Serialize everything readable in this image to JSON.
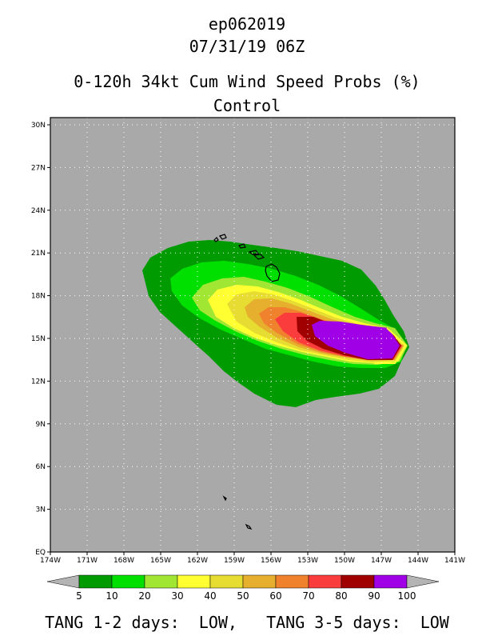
{
  "header": {
    "storm_id": "ep062019",
    "datetime": "07/31/19 06Z",
    "product": "0-120h 34kt Cum Wind Speed Probs (%)",
    "run": "Control"
  },
  "map": {
    "background_color": "#a9a9a9",
    "lat_labels": [
      "30N",
      "27N",
      "24N",
      "21N",
      "18N",
      "15N",
      "12N",
      "9N",
      "6N",
      "3N",
      "EQ"
    ],
    "lon_labels": [
      "174W",
      "171W",
      "168W",
      "165W",
      "162W",
      "159W",
      "156W",
      "153W",
      "150W",
      "147W",
      "144W",
      "141W"
    ]
  },
  "legend": {
    "labels": [
      "5",
      "10",
      "20",
      "30",
      "40",
      "50",
      "60",
      "70",
      "80",
      "90",
      "100"
    ],
    "colors": [
      "#009b00",
      "#00e000",
      "#a0e632",
      "#ffff32",
      "#e6dc32",
      "#e6af2d",
      "#f0822d",
      "#fa3c3c",
      "#a00000",
      "#a000e6"
    ],
    "low_color": "#b4b4b4",
    "high_color": "#b4b4b4"
  },
  "footer": {
    "text": "TANG 1-2 days:  LOW,   TANG 3-5 days:  LOW"
  }
}
